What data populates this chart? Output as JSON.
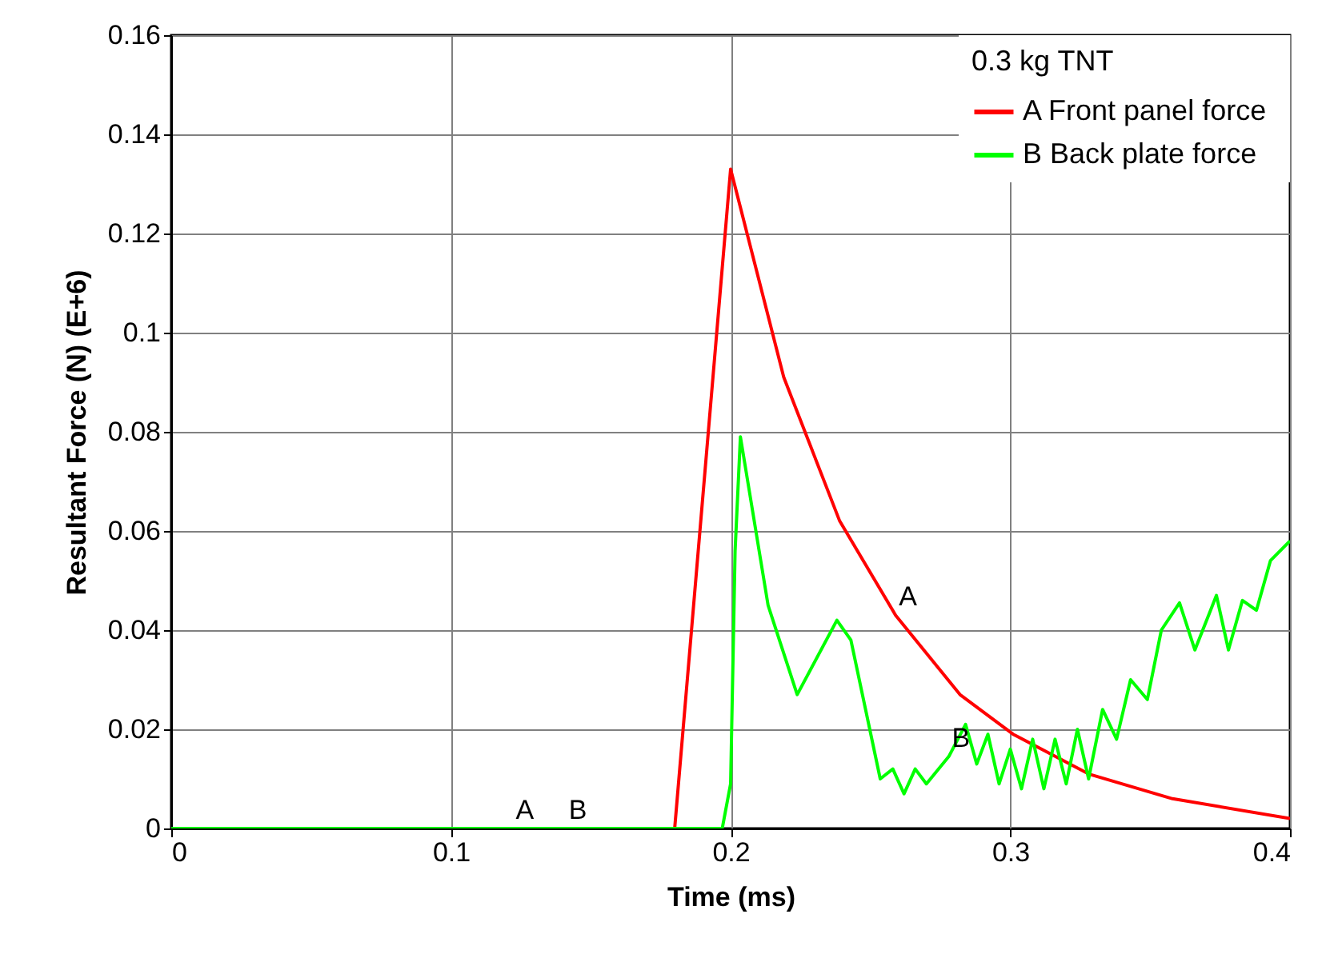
{
  "chart_data": {
    "type": "line",
    "xlabel": "Time (ms)",
    "ylabel": "Resultant Force (N) (E+6)",
    "legend_title": "0.3 kg TNT",
    "legend": "top right",
    "grid": true,
    "xlim": [
      0,
      0.4
    ],
    "xticks": [
      0,
      0.1,
      0.2,
      0.3,
      0.4
    ],
    "ylim": [
      0,
      0.16
    ],
    "yticks": [
      0,
      0.02,
      0.04,
      0.06,
      0.08,
      0.1,
      0.12,
      0.14,
      0.16
    ],
    "series": [
      {
        "name": "A  Front panel force",
        "color": "#ff0000",
        "x": [
          0,
          0.18,
          0.2,
          0.219,
          0.239,
          0.259,
          0.282,
          0.301,
          0.328,
          0.358,
          0.4
        ],
        "values": [
          0,
          0,
          0.133,
          0.091,
          0.062,
          0.043,
          0.027,
          0.019,
          0.011,
          0.006,
          0.002
        ]
      },
      {
        "name": "B  Back plate force",
        "color": "#00ff00",
        "x": [
          0,
          0.197,
          0.2,
          0.2016,
          0.2035,
          0.2134,
          0.2238,
          0.238,
          0.243,
          0.2535,
          0.258,
          0.262,
          0.266,
          0.27,
          0.278,
          0.284,
          0.288,
          0.292,
          0.296,
          0.3,
          0.304,
          0.308,
          0.312,
          0.316,
          0.32,
          0.324,
          0.328,
          0.333,
          0.338,
          0.343,
          0.349,
          0.354,
          0.3605,
          0.366,
          0.3737,
          0.378,
          0.383,
          0.388,
          0.393,
          0.4
        ],
        "values": [
          0,
          0,
          0.009,
          0.056,
          0.079,
          0.045,
          0.027,
          0.042,
          0.038,
          0.01,
          0.012,
          0.007,
          0.012,
          0.009,
          0.0145,
          0.021,
          0.013,
          0.019,
          0.009,
          0.016,
          0.008,
          0.018,
          0.008,
          0.018,
          0.009,
          0.02,
          0.01,
          0.024,
          0.018,
          0.03,
          0.026,
          0.04,
          0.0455,
          0.036,
          0.047,
          0.036,
          0.046,
          0.044,
          0.054,
          0.058
        ]
      }
    ],
    "annotations": [
      {
        "text": "A",
        "x": 0.122,
        "y": 0
      },
      {
        "text": "B",
        "x": 0.141,
        "y": 0
      },
      {
        "text": "A",
        "x": 0.259,
        "y": 0.043
      },
      {
        "text": "B",
        "x": 0.278,
        "y": 0.0145
      }
    ]
  }
}
